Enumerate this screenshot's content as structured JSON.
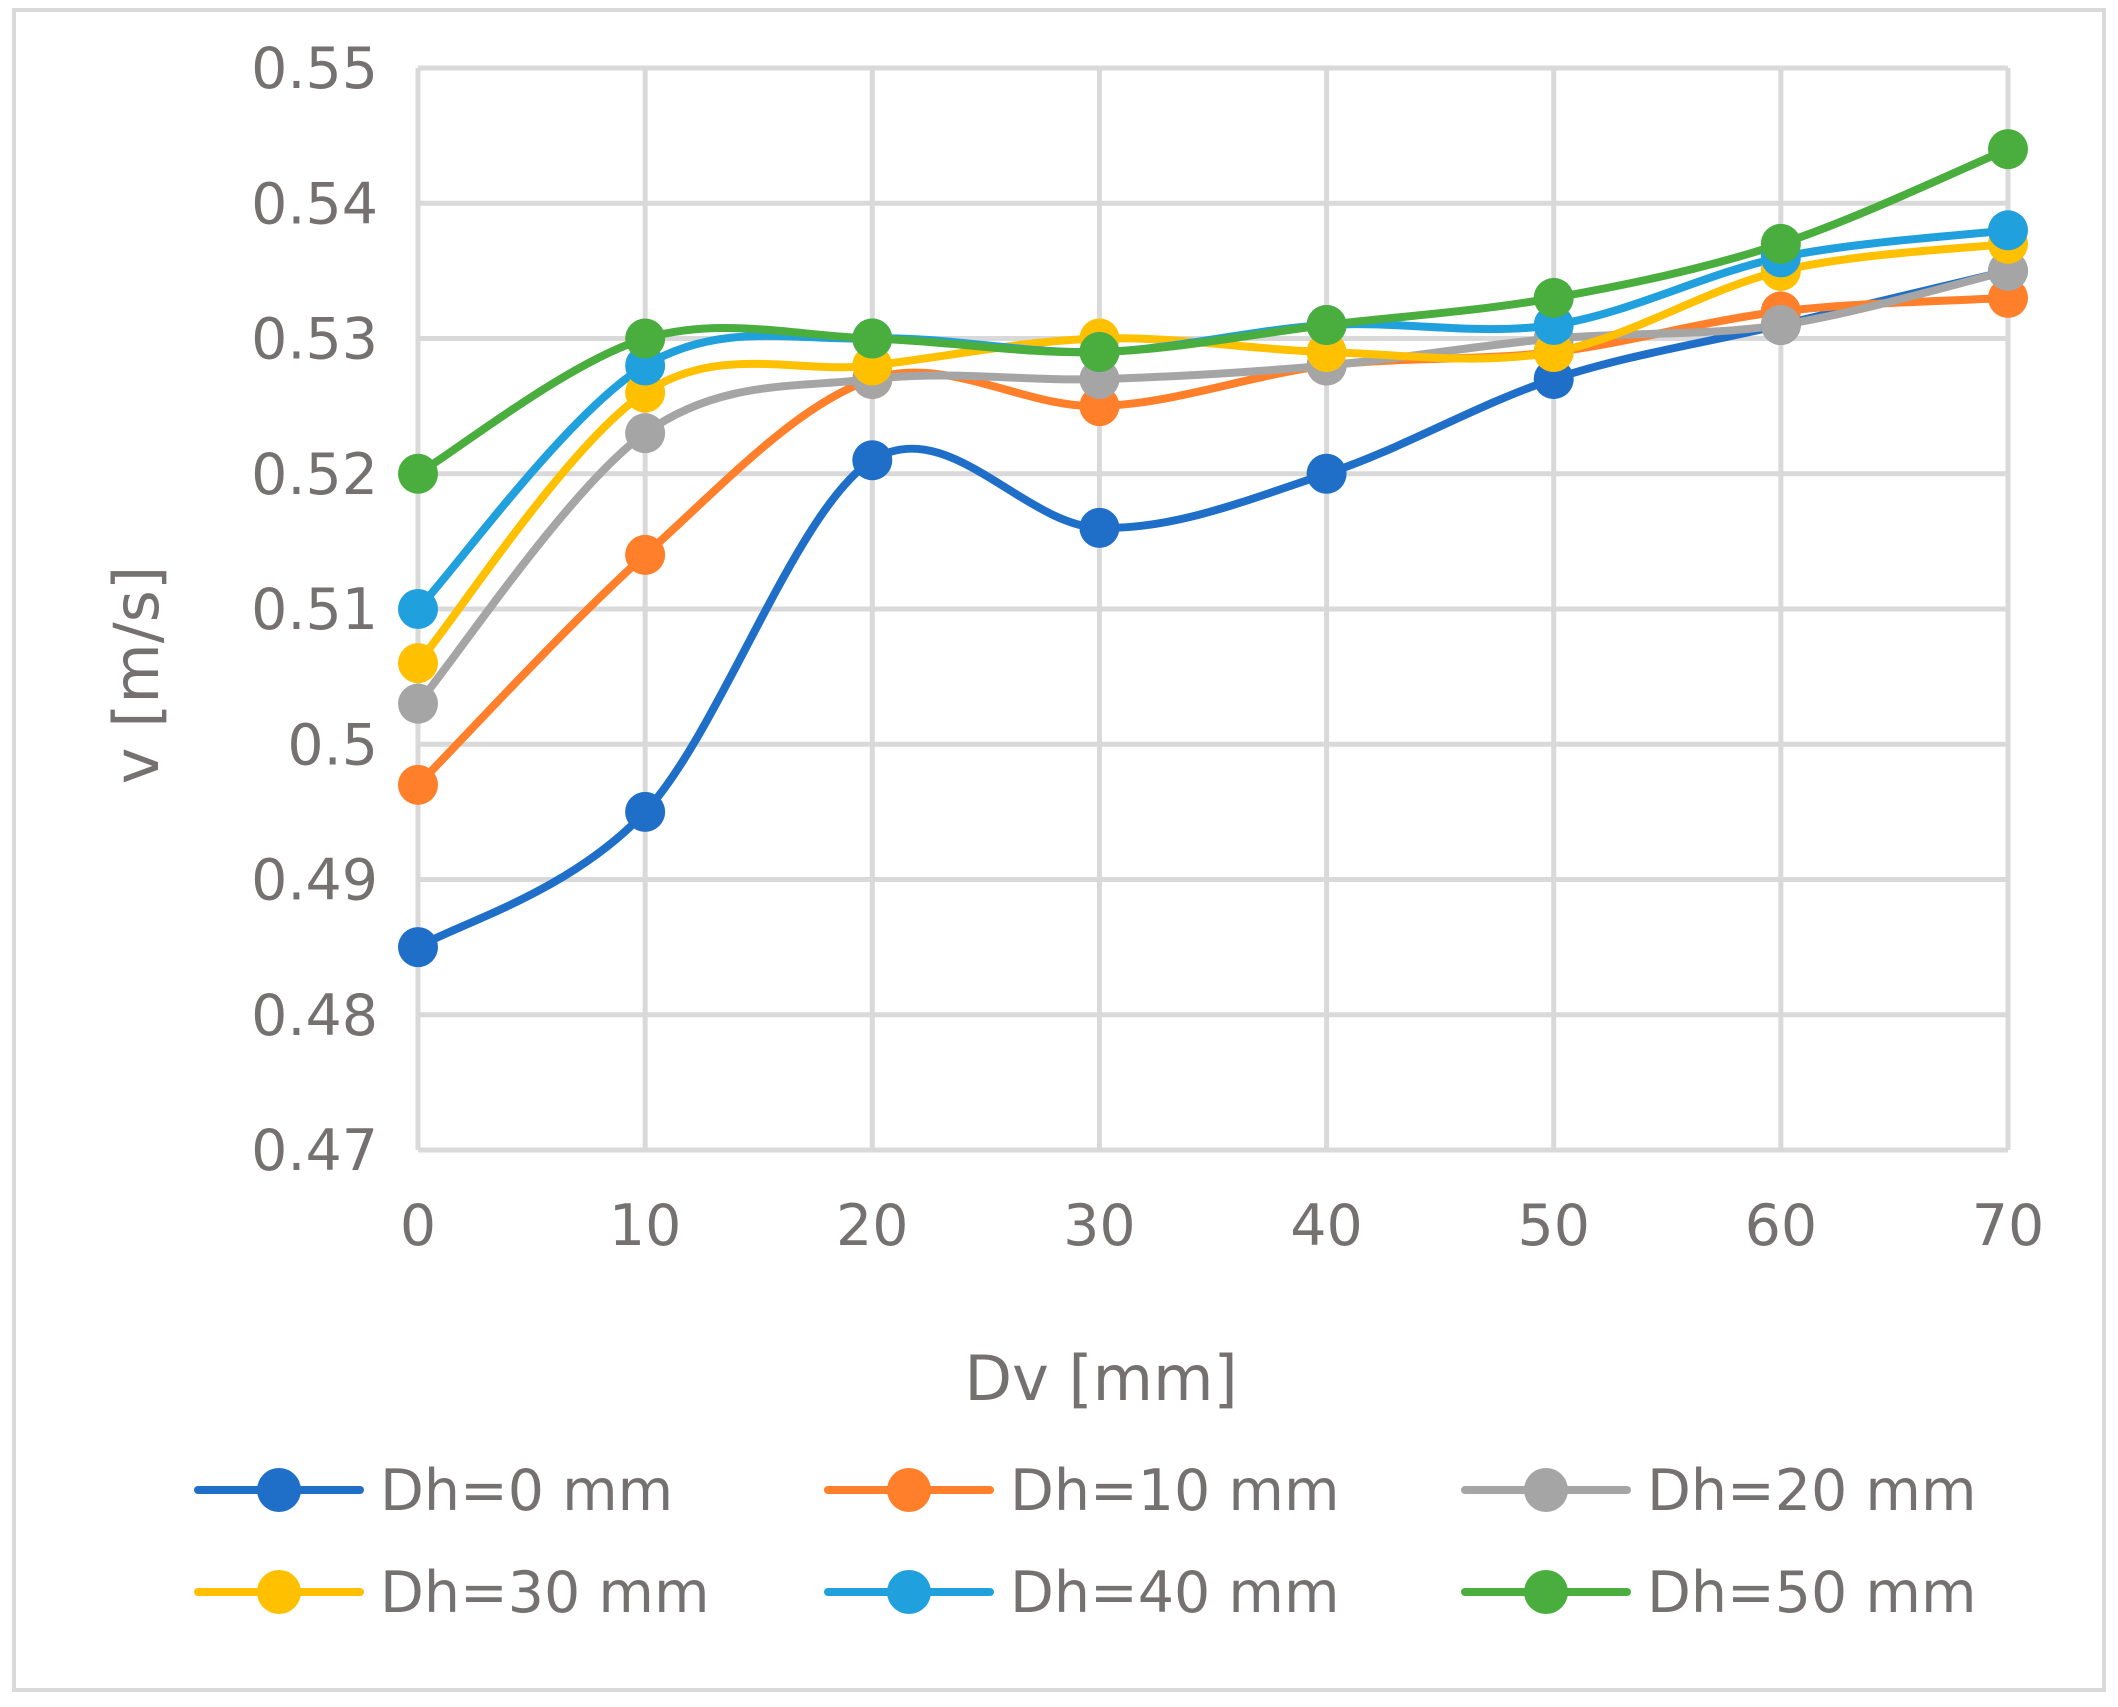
{
  "chart_data": {
    "type": "line",
    "title": "",
    "xlabel": "Dv [mm]",
    "ylabel": "v [m/s]",
    "x": [
      0,
      10,
      20,
      30,
      40,
      50,
      60,
      70
    ],
    "xlim": [
      0,
      70
    ],
    "ylim": [
      0.47,
      0.55
    ],
    "x_ticks": [
      "0",
      "10",
      "20",
      "30",
      "40",
      "50",
      "60",
      "70"
    ],
    "y_ticks": [
      "0.47",
      "0.48",
      "0.49",
      "0.5",
      "0.51",
      "0.52",
      "0.53",
      "0.54",
      "0.55"
    ],
    "grid": true,
    "smooth": true,
    "legend_position": "bottom",
    "series": [
      {
        "name": "Dh=0 mm",
        "color": "#1F6FC9",
        "values": [
          0.485,
          0.495,
          0.521,
          0.516,
          0.52,
          0.527,
          0.531,
          0.535
        ]
      },
      {
        "name": "Dh=10 mm",
        "color": "#FF7F2A",
        "values": [
          0.497,
          0.514,
          0.527,
          0.525,
          0.528,
          0.529,
          0.532,
          0.533
        ]
      },
      {
        "name": "Dh=20 mm",
        "color": "#A5A5A5",
        "values": [
          0.503,
          0.523,
          0.527,
          0.527,
          0.528,
          0.53,
          0.531,
          0.535
        ]
      },
      {
        "name": "Dh=30 mm",
        "color": "#FFC000",
        "values": [
          0.506,
          0.526,
          0.528,
          0.53,
          0.529,
          0.529,
          0.535,
          0.537
        ]
      },
      {
        "name": "Dh=40 mm",
        "color": "#20A0DC",
        "values": [
          0.51,
          0.528,
          0.53,
          0.529,
          0.531,
          0.531,
          0.536,
          0.538
        ]
      },
      {
        "name": "Dh=50 mm",
        "color": "#4AAE3E",
        "values": [
          0.52,
          0.53,
          0.53,
          0.529,
          0.531,
          0.533,
          0.537,
          0.544
        ]
      }
    ]
  }
}
